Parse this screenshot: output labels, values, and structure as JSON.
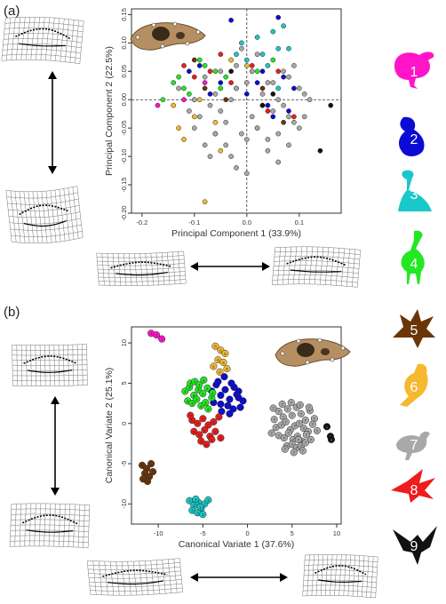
{
  "figure": {
    "panel_a": "(a)",
    "panel_b": "(b)"
  },
  "legend": {
    "groups": [
      {
        "num": "1",
        "color": "#ff14c8"
      },
      {
        "num": "2",
        "color": "#0b0bd6"
      },
      {
        "num": "3",
        "color": "#19c8c8"
      },
      {
        "num": "4",
        "color": "#22e822"
      },
      {
        "num": "5",
        "color": "#6b3508"
      },
      {
        "num": "6",
        "color": "#f5b82e"
      },
      {
        "num": "7",
        "color": "#a8a8a8"
      },
      {
        "num": "8",
        "color": "#ee1c1c"
      },
      {
        "num": "9",
        "color": "#111111"
      }
    ]
  },
  "chart_data": [
    {
      "type": "scatter",
      "id": "pca",
      "xlabel": "Principal Component 1 (33.9%)",
      "ylabel": "Principal Component 2 (22.5%)",
      "xlim": [
        -0.22,
        0.18
      ],
      "ylim": [
        -0.2,
        0.16
      ],
      "xticks": [
        -0.2,
        -0.1,
        0.0,
        0.1
      ],
      "xtick_labels": [
        "-0.2",
        "-0.1",
        "0.0",
        "0.1"
      ],
      "yticks": [
        -0.2,
        -0.15,
        -0.1,
        -0.05,
        0.0,
        0.05,
        0.1,
        0.15
      ],
      "ytick_labels": [
        "-0.20",
        "-0.15",
        "-0.10",
        "-0.05",
        "0.00",
        "0.05",
        "0.10",
        "0.15"
      ],
      "reference_lines": {
        "x": 0,
        "y": 0
      },
      "grid": false,
      "series": [
        {
          "group": "1",
          "color": "#ff14c8",
          "x": [
            -0.17,
            -0.12,
            -0.08
          ],
          "y": [
            -0.01,
            0.0,
            0.03
          ]
        },
        {
          "group": "2",
          "color": "#0b0bd6",
          "x": [
            -0.11,
            -0.09,
            -0.05,
            -0.03,
            -0.02,
            0.0,
            0.02,
            0.04,
            0.06,
            0.07,
            0.08,
            0.09,
            -0.07,
            -0.06,
            0.03,
            0.05
          ],
          "y": [
            0.05,
            0.06,
            0.03,
            0.14,
            0.02,
            0.01,
            0.03,
            -0.01,
            0.145,
            0.04,
            -0.02,
            0.02,
            0.01,
            -0.06,
            0.05,
            -0.03
          ]
        },
        {
          "group": "3",
          "color": "#19c8c8",
          "x": [
            -0.01,
            0.02,
            0.03,
            0.05,
            0.06,
            0.04,
            0.07,
            0.08,
            0.0,
            0.01,
            -0.02,
            0.06
          ],
          "y": [
            0.1,
            0.11,
            0.08,
            0.12,
            0.09,
            0.06,
            0.13,
            0.09,
            0.07,
            0.05,
            0.08,
            0.02
          ]
        },
        {
          "group": "4",
          "color": "#22e822",
          "x": [
            -0.16,
            -0.14,
            -0.13,
            -0.12,
            -0.11,
            -0.1,
            -0.09,
            -0.08,
            -0.06,
            -0.05,
            -0.04,
            0.02,
            0.05
          ],
          "y": [
            0.0,
            0.03,
            0.04,
            0.02,
            0.01,
            0.0,
            0.07,
            0.06,
            0.05,
            0.02,
            0.04,
            0.05,
            0.07
          ]
        },
        {
          "group": "5",
          "color": "#6b3508",
          "x": [
            -0.1,
            -0.08,
            -0.04,
            0.03,
            0.07
          ],
          "y": [
            0.07,
            0.02,
            0.0,
            0.02,
            -0.04
          ]
        },
        {
          "group": "6",
          "color": "#f5b82e",
          "x": [
            -0.14,
            -0.13,
            -0.12,
            -0.1,
            -0.09,
            -0.08,
            -0.05,
            -0.03,
            0.0,
            -0.06
          ],
          "y": [
            -0.01,
            -0.05,
            -0.07,
            -0.03,
            0.0,
            -0.18,
            -0.09,
            0.07,
            0.06,
            -0.04
          ]
        },
        {
          "group": "7",
          "color": "#a8a8a8",
          "x": [
            -0.13,
            -0.11,
            -0.1,
            -0.09,
            -0.08,
            -0.07,
            -0.06,
            -0.05,
            -0.04,
            -0.03,
            -0.02,
            -0.01,
            0.0,
            0.01,
            0.02,
            0.03,
            0.04,
            0.05,
            0.06,
            0.07,
            0.08,
            0.09,
            0.1,
            0.11,
            0.12,
            -0.08,
            -0.06,
            -0.04,
            -0.02,
            0.0,
            0.02,
            0.04,
            0.06,
            0.08,
            0.1,
            -0.05,
            -0.02,
            0.01,
            0.03,
            0.05,
            0.07,
            0.09,
            -0.1,
            -0.07,
            -0.03,
            0.0,
            0.04,
            0.08,
            0.11,
            0.06,
            0.02,
            -0.01
          ],
          "y": [
            0.02,
            -0.02,
            0.0,
            -0.03,
            0.04,
            -0.01,
            0.01,
            -0.02,
            -0.04,
            0.0,
            0.02,
            -0.06,
            0.03,
            -0.03,
            -0.05,
            0.01,
            0.03,
            -0.02,
            0.0,
            -0.01,
            0.04,
            -0.04,
            0.02,
            -0.03,
            0.0,
            -0.08,
            -0.06,
            -0.08,
            -0.12,
            -0.07,
            -0.05,
            -0.09,
            -0.06,
            -0.03,
            -0.05,
            0.05,
            0.06,
            0.05,
            -0.01,
            0.03,
            0.05,
            0.06,
            -0.05,
            -0.1,
            -0.1,
            -0.13,
            -0.07,
            -0.08,
            0.01,
            -0.11,
            0.08,
            0.09
          ]
        },
        {
          "group": "8",
          "color": "#ee1c1c",
          "x": [
            -0.12,
            -0.1,
            -0.07,
            -0.05,
            -0.03,
            0.01,
            0.04,
            0.06,
            0.09
          ],
          "y": [
            0.06,
            0.04,
            0.05,
            0.08,
            0.03,
            0.06,
            -0.02,
            0.05,
            -0.03
          ]
        },
        {
          "group": "9",
          "color": "#111111",
          "x": [
            -0.03,
            0.03,
            0.05,
            0.14,
            0.16
          ],
          "y": [
            0.05,
            -0.01,
            0.01,
            -0.09,
            -0.01
          ]
        }
      ]
    },
    {
      "type": "scatter",
      "id": "cva",
      "xlabel": "Canonical Variate 1 (37.6%)",
      "ylabel": "Canonical Variate 2 (25.1%)",
      "xlim": [
        -13,
        10.5
      ],
      "ylim": [
        -12.5,
        12
      ],
      "xticks": [
        -10,
        -5,
        0,
        5,
        10
      ],
      "xtick_labels": [
        "-10",
        "-5",
        "0",
        "5",
        "10"
      ],
      "yticks": [
        -10,
        -5,
        0,
        5,
        10
      ],
      "ytick_labels": [
        "-10",
        "-5",
        "0",
        "5",
        "10"
      ],
      "grid": false,
      "series": [
        {
          "group": "1",
          "color": "#ff14c8",
          "x": [
            -10.8,
            -10.2,
            -9.6
          ],
          "y": [
            11.2,
            11.0,
            10.5
          ]
        },
        {
          "group": "2",
          "color": "#0b0bd6",
          "x": [
            -4.0,
            -3.5,
            -3.0,
            -2.5,
            -2.0,
            -1.5,
            -1.0,
            -0.5,
            -3.8,
            -3.0,
            -2.2,
            -1.6,
            -0.8,
            -3.3,
            -2.6,
            -1.8,
            -1.0,
            -2.9,
            -2.0,
            -1.2
          ],
          "y": [
            4.0,
            4.8,
            3.5,
            4.2,
            3.0,
            4.5,
            3.2,
            2.8,
            2.6,
            2.4,
            2.2,
            1.8,
            2.0,
            5.2,
            5.8,
            5.0,
            4.0,
            1.5,
            1.2,
            3.6
          ]
        },
        {
          "group": "3",
          "color": "#19c8c8",
          "x": [
            -6.5,
            -6.0,
            -5.5,
            -5.2,
            -4.8,
            -6.2,
            -5.6,
            -5.0,
            -4.4,
            -5.8,
            -5.3
          ],
          "y": [
            -9.6,
            -10.2,
            -9.8,
            -10.6,
            -10.0,
            -10.8,
            -11.1,
            -11.3,
            -9.5,
            -9.4,
            -10.4
          ]
        },
        {
          "group": "4",
          "color": "#22e822",
          "x": [
            -7.0,
            -6.5,
            -6.0,
            -5.5,
            -5.0,
            -4.5,
            -4.0,
            -6.7,
            -6.2,
            -5.7,
            -5.2,
            -4.7,
            -6.4,
            -5.9,
            -5.4,
            -4.9,
            -4.4,
            -3.9
          ],
          "y": [
            4.0,
            4.5,
            3.5,
            4.2,
            3.7,
            4.4,
            3.2,
            2.8,
            2.5,
            3.0,
            2.2,
            2.6,
            5.0,
            5.2,
            4.8,
            5.4,
            1.8,
            3.8
          ]
        },
        {
          "group": "5",
          "color": "#6b3508",
          "x": [
            -11.8,
            -11.3,
            -10.8,
            -11.5,
            -11.0,
            -10.6,
            -11.7,
            -11.2
          ],
          "y": [
            -5.2,
            -5.6,
            -5.0,
            -6.2,
            -6.6,
            -6.0,
            -6.9,
            -7.2
          ]
        },
        {
          "group": "6",
          "color": "#f5b82e",
          "x": [
            -3.6,
            -3.0,
            -2.5,
            -3.3,
            -2.7,
            -3.8,
            -2.3,
            -3.1
          ],
          "y": [
            9.6,
            9.1,
            8.7,
            7.9,
            7.6,
            7.1,
            6.8,
            6.4
          ]
        },
        {
          "group": "7",
          "color": "#a8a8a8",
          "x": [
            3.0,
            3.5,
            4.0,
            4.5,
            5.0,
            5.5,
            6.0,
            6.5,
            7.0,
            7.5,
            3.2,
            3.8,
            4.3,
            4.8,
            5.3,
            5.8,
            6.3,
            6.8,
            7.3,
            2.7,
            3.5,
            4.1,
            4.6,
            5.1,
            5.6,
            6.1,
            6.6,
            7.1,
            4.4,
            5.0,
            5.5,
            6.0,
            6.5,
            3.9,
            4.9,
            5.9,
            6.9,
            4.2,
            5.2,
            6.2,
            7.8,
            2.9,
            5.7
          ],
          "y": [
            0.5,
            1.5,
            0.8,
            1.8,
            1.0,
            2.0,
            1.2,
            0.4,
            1.6,
            0.6,
            -0.5,
            -0.2,
            0.2,
            -0.8,
            -0.3,
            0.0,
            -0.6,
            -1.0,
            -0.1,
            -1.2,
            -1.5,
            -1.8,
            -1.2,
            -2.0,
            -1.6,
            -2.2,
            -1.4,
            -2.0,
            -2.8,
            -2.6,
            -3.0,
            -2.8,
            -2.4,
            2.4,
            2.6,
            2.3,
            2.0,
            -3.2,
            -3.6,
            -3.4,
            -0.9,
            1.9,
            -2.0
          ]
        },
        {
          "group": "8",
          "color": "#ee1c1c",
          "x": [
            -6.2,
            -5.6,
            -5.0,
            -4.4,
            -3.8,
            -3.2,
            -6.0,
            -5.4,
            -4.8,
            -4.2,
            -3.6,
            -5.2,
            -4.6,
            -4.0,
            -3.0,
            -6.4
          ],
          "y": [
            0.4,
            0.0,
            0.6,
            -0.2,
            0.2,
            0.8,
            -1.0,
            -1.4,
            -0.8,
            -1.6,
            -1.0,
            -2.2,
            -2.6,
            -2.0,
            -1.8,
            1.0
          ]
        },
        {
          "group": "9",
          "color": "#111111",
          "x": [
            8.9,
            9.3,
            9.4
          ],
          "y": [
            -0.4,
            -1.6,
            -2.0
          ]
        }
      ]
    }
  ]
}
